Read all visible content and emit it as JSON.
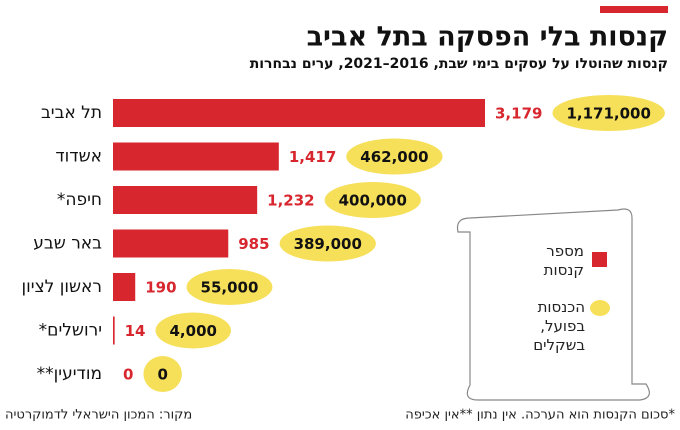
{
  "chart_data": {
    "type": "bar",
    "title": "קנסות בלי הפסקה בתל אביב",
    "subtitle": "קנסות שהוטלו על עסקים בימי שבת, 2016–2021, ערים נבחרות",
    "categories": [
      "תל אביב",
      "אשדוד",
      "חיפה*",
      "באר שבע",
      "ראשון לציון",
      "ירושלים*",
      "מודיעין**"
    ],
    "series": [
      {
        "name": "מספר קנסות",
        "color": "#d7262e",
        "values": [
          3179,
          1417,
          1232,
          985,
          190,
          14,
          0
        ],
        "value_labels": [
          "3,179",
          "1,417",
          "1,232",
          "985",
          "190",
          "14",
          "0"
        ]
      },
      {
        "name": "הכנסות בפועל, בשקלים",
        "color": "#f6e05a",
        "values": [
          1171000,
          462000,
          400000,
          389000,
          55000,
          4000,
          0
        ],
        "value_labels": [
          "1,171,000",
          "462,000",
          "400,000",
          "389,000",
          "55,000",
          "4,000",
          "0"
        ]
      }
    ],
    "footnote": "*סכום הקנסות הוא הערכה. אין נתון **אין אכיפה",
    "source": "מקור: המכון הישראלי לדמוקרטיה"
  }
}
